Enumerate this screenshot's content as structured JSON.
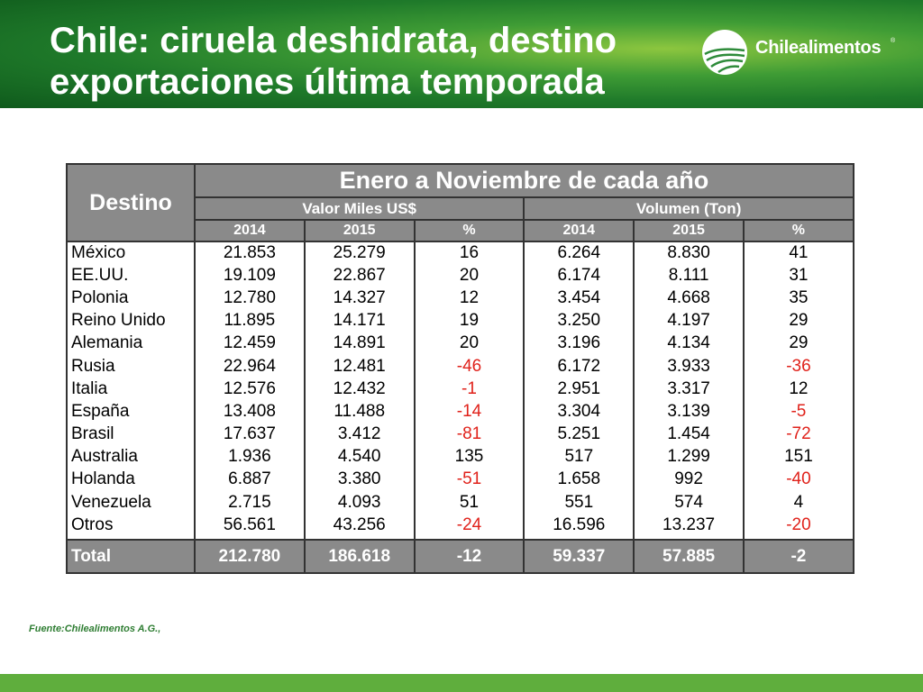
{
  "header": {
    "title": "Chile: ciruela deshidrata, destino\nexportaciones última temporada",
    "logo_text": "Chilealimentos",
    "logo_reg": "®"
  },
  "table": {
    "destino_label": "Destino",
    "period_label": "Enero a Noviembre de cada año",
    "group_value": "Valor Miles US$",
    "group_volume": "Volumen (Ton)",
    "year_headers": [
      "2014",
      "2015",
      "%",
      "2014",
      "2015",
      "%"
    ],
    "rows": [
      {
        "name": "México",
        "v2014": "21.853",
        "v2015": "25.279",
        "vpct": "16",
        "t2014": "6.264",
        "t2015": "8.830",
        "tpct": "41"
      },
      {
        "name": "EE.UU.",
        "v2014": "19.109",
        "v2015": "22.867",
        "vpct": "20",
        "t2014": "6.174",
        "t2015": "8.111",
        "tpct": "31"
      },
      {
        "name": "Polonia",
        "v2014": "12.780",
        "v2015": "14.327",
        "vpct": "12",
        "t2014": "3.454",
        "t2015": "4.668",
        "tpct": "35"
      },
      {
        "name": "Reino Unido",
        "v2014": "11.895",
        "v2015": "14.171",
        "vpct": "19",
        "t2014": "3.250",
        "t2015": "4.197",
        "tpct": "29"
      },
      {
        "name": "Alemania",
        "v2014": "12.459",
        "v2015": "14.891",
        "vpct": "20",
        "t2014": "3.196",
        "t2015": "4.134",
        "tpct": "29"
      },
      {
        "name": "Rusia",
        "v2014": "22.964",
        "v2015": "12.481",
        "vpct": "-46",
        "t2014": "6.172",
        "t2015": "3.933",
        "tpct": "-36"
      },
      {
        "name": "Italia",
        "v2014": "12.576",
        "v2015": "12.432",
        "vpct": "-1",
        "t2014": "2.951",
        "t2015": "3.317",
        "tpct": "12"
      },
      {
        "name": "España",
        "v2014": "13.408",
        "v2015": "11.488",
        "vpct": "-14",
        "t2014": "3.304",
        "t2015": "3.139",
        "tpct": "-5"
      },
      {
        "name": "Brasil",
        "v2014": "17.637",
        "v2015": "3.412",
        "vpct": "-81",
        "t2014": "5.251",
        "t2015": "1.454",
        "tpct": "-72"
      },
      {
        "name": "Australia",
        "v2014": "1.936",
        "v2015": "4.540",
        "vpct": "135",
        "t2014": "517",
        "t2015": "1.299",
        "tpct": "151"
      },
      {
        "name": "Holanda",
        "v2014": "6.887",
        "v2015": "3.380",
        "vpct": "-51",
        "t2014": "1.658",
        "t2015": "992",
        "tpct": "-40"
      },
      {
        "name": "Venezuela",
        "v2014": "2.715",
        "v2015": "4.093",
        "vpct": "51",
        "t2014": "551",
        "t2015": "574",
        "tpct": "4"
      },
      {
        "name": "Otros",
        "v2014": "56.561",
        "v2015": "43.256",
        "vpct": "-24",
        "t2014": "16.596",
        "t2015": "13.237",
        "tpct": "-20"
      }
    ],
    "total": {
      "name": "Total",
      "v2014": "212.780",
      "v2015": "186.618",
      "vpct": "-12",
      "t2014": "59.337",
      "t2015": "57.885",
      "tpct": "-2"
    }
  },
  "source": "Fuente:Chilealimentos A.G.,",
  "colors": {
    "header_green": "#1f7a2a",
    "accent_green": "#5fae3d",
    "negative_red": "#e0221b",
    "table_header_gray": "#8a8a8a"
  }
}
